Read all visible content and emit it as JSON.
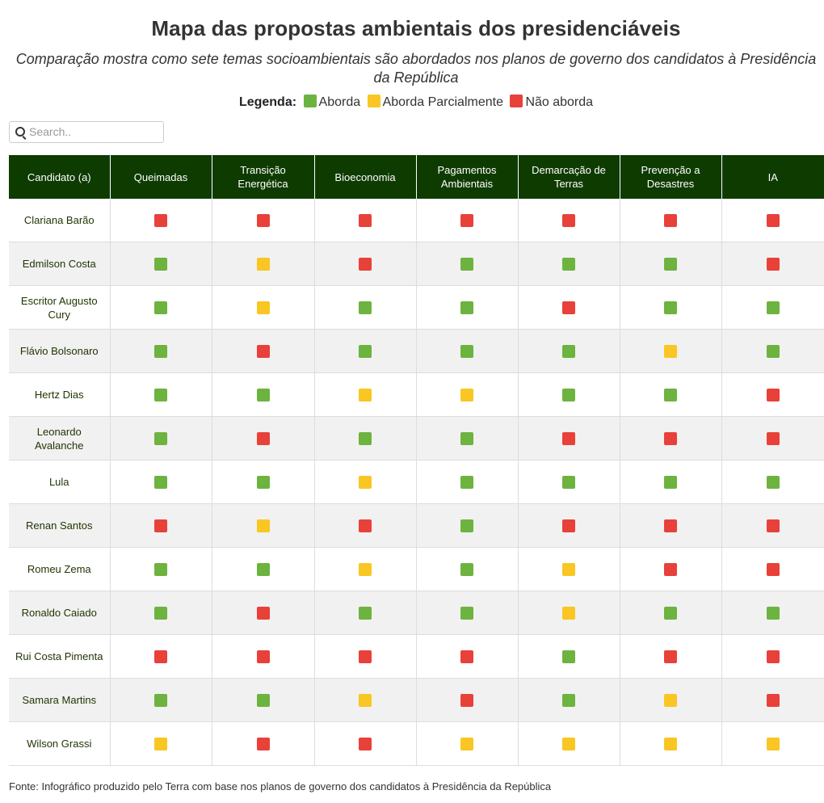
{
  "title": "Mapa das propostas ambientais dos presidenciáveis",
  "subtitle": "Comparação mostra como sete temas socioambientais são abordados nos planos de governo dos candidatos à Presidência da República",
  "legend": {
    "label": "Legenda:",
    "items": [
      {
        "status": "A",
        "label": "Aborda"
      },
      {
        "status": "P",
        "label": "Aborda Parcialmente"
      },
      {
        "status": "N",
        "label": "Não aborda"
      }
    ]
  },
  "colors": {
    "A": "#6db33f",
    "P": "#f9c623",
    "N": "#e8413a",
    "header_bg": "#0e3b00"
  },
  "search": {
    "placeholder": "Search.."
  },
  "table": {
    "columns": [
      "Candidato (a)",
      "Queimadas",
      "Transição Energética",
      "Bioeconomia",
      "Pagamentos Ambientais",
      "Demarcação de Terras",
      "Prevenção a Desastres",
      "IA"
    ],
    "rows": [
      {
        "name": "Clariana Barão",
        "values": [
          "N",
          "N",
          "N",
          "N",
          "N",
          "N",
          "N"
        ]
      },
      {
        "name": "Edmilson Costa",
        "values": [
          "A",
          "P",
          "N",
          "A",
          "A",
          "A",
          "N"
        ]
      },
      {
        "name": "Escritor Augusto Cury",
        "values": [
          "A",
          "P",
          "A",
          "A",
          "N",
          "A",
          "A"
        ]
      },
      {
        "name": "Flávio Bolsonaro",
        "values": [
          "A",
          "N",
          "A",
          "A",
          "A",
          "P",
          "A"
        ]
      },
      {
        "name": "Hertz Dias",
        "values": [
          "A",
          "A",
          "P",
          "P",
          "A",
          "A",
          "N"
        ]
      },
      {
        "name": "Leonardo Avalanche",
        "values": [
          "A",
          "N",
          "A",
          "A",
          "N",
          "N",
          "N"
        ]
      },
      {
        "name": "Lula",
        "values": [
          "A",
          "A",
          "P",
          "A",
          "A",
          "A",
          "A"
        ]
      },
      {
        "name": "Renan Santos",
        "values": [
          "N",
          "P",
          "N",
          "A",
          "N",
          "N",
          "N"
        ]
      },
      {
        "name": "Romeu Zema",
        "values": [
          "A",
          "A",
          "P",
          "A",
          "P",
          "N",
          "N"
        ]
      },
      {
        "name": "Ronaldo Caiado",
        "values": [
          "A",
          "N",
          "A",
          "A",
          "P",
          "A",
          "A"
        ]
      },
      {
        "name": "Rui Costa Pimenta",
        "values": [
          "N",
          "N",
          "N",
          "N",
          "A",
          "N",
          "N"
        ]
      },
      {
        "name": "Samara Martins",
        "values": [
          "A",
          "A",
          "P",
          "N",
          "A",
          "P",
          "N"
        ]
      },
      {
        "name": "Wilson Grassi",
        "values": [
          "P",
          "N",
          "N",
          "P",
          "P",
          "P",
          "P"
        ]
      }
    ]
  },
  "footer": "Fonte: Infográfico produzido pelo Terra com base nos planos de governo dos candidatos à Presidência da República"
}
